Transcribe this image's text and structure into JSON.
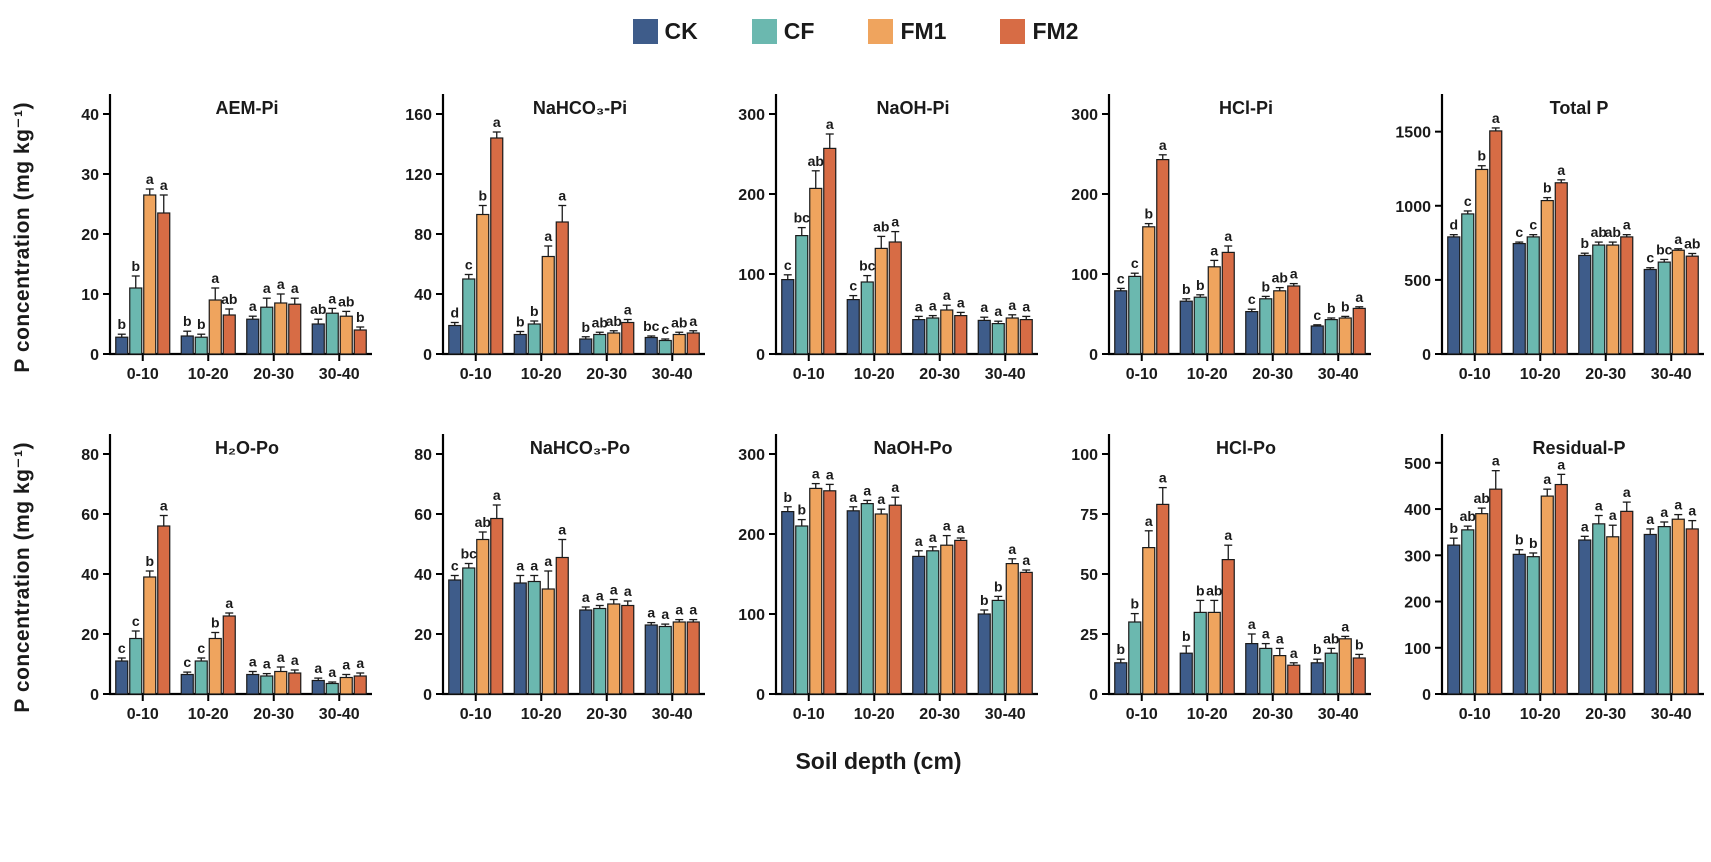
{
  "figure": {
    "y_axis_label": "P concentration (mg kg⁻¹)",
    "x_axis_label": "Soil depth (cm)",
    "categories": [
      "0-10",
      "10-20",
      "20-30",
      "30-40"
    ],
    "treatments": [
      "CK",
      "CF",
      "FM1",
      "FM2"
    ],
    "legend": [
      {
        "label": "CK",
        "color": "#3E5C8A"
      },
      {
        "label": "CF",
        "color": "#6BB8AF"
      },
      {
        "label": "FM1",
        "color": "#EFA45E"
      },
      {
        "label": "FM2",
        "color": "#D76C45"
      }
    ],
    "bar_outline_color": "#1a1a1a",
    "background_color": "#ffffff"
  },
  "chart_data": [
    {
      "type": "bar",
      "title": "AEM-Pi",
      "row": 1,
      "categories": [
        "0-10",
        "10-20",
        "20-30",
        "30-40"
      ],
      "ylim": [
        0,
        42
      ],
      "yticks": [
        0,
        10,
        20,
        30,
        40
      ],
      "series": [
        {
          "name": "CK",
          "values": [
            2.8,
            3.0,
            5.8,
            5.0
          ],
          "errors": [
            0.5,
            0.8,
            0.5,
            0.8
          ],
          "letters": [
            "b",
            "b",
            "a",
            "ab"
          ]
        },
        {
          "name": "CF",
          "values": [
            11.0,
            2.8,
            7.8,
            6.8
          ],
          "errors": [
            2.0,
            0.5,
            1.5,
            0.8
          ],
          "letters": [
            "b",
            "b",
            "a",
            "a"
          ]
        },
        {
          "name": "FM1",
          "values": [
            26.5,
            9.0,
            8.5,
            6.3
          ],
          "errors": [
            1.0,
            2.0,
            1.5,
            0.8
          ],
          "letters": [
            "a",
            "a",
            "a",
            "ab"
          ]
        },
        {
          "name": "FM2",
          "values": [
            23.5,
            6.5,
            8.3,
            4.0
          ],
          "errors": [
            3.0,
            1.0,
            1.0,
            0.5
          ],
          "letters": [
            "a",
            "ab",
            "a",
            "b"
          ]
        }
      ]
    },
    {
      "type": "bar",
      "title": "NaHCO₃-Pi",
      "row": 1,
      "categories": [
        "0-10",
        "10-20",
        "20-30",
        "30-40"
      ],
      "ylim": [
        0,
        168
      ],
      "yticks": [
        0,
        40,
        80,
        120,
        160
      ],
      "series": [
        {
          "name": "CK",
          "values": [
            19,
            13,
            10,
            11
          ],
          "errors": [
            2,
            2,
            1.5,
            1
          ],
          "letters": [
            "d",
            "b",
            "b",
            "bc"
          ]
        },
        {
          "name": "CF",
          "values": [
            50,
            20,
            13,
            9
          ],
          "errors": [
            3,
            2,
            1.5,
            1
          ],
          "letters": [
            "c",
            "b",
            "ab",
            "c"
          ]
        },
        {
          "name": "FM1",
          "values": [
            93,
            65,
            14,
            13
          ],
          "errors": [
            6,
            7,
            1.5,
            1.5
          ],
          "letters": [
            "b",
            "a",
            "ab",
            "ab"
          ]
        },
        {
          "name": "FM2",
          "values": [
            144,
            88,
            21,
            14
          ],
          "errors": [
            4,
            11,
            2,
            1.5
          ],
          "letters": [
            "a",
            "a",
            "a",
            "a"
          ]
        }
      ]
    },
    {
      "type": "bar",
      "title": "NaOH-Pi",
      "row": 1,
      "categories": [
        "0-10",
        "10-20",
        "20-30",
        "30-40"
      ],
      "ylim": [
        0,
        315
      ],
      "yticks": [
        0,
        100,
        200,
        300
      ],
      "series": [
        {
          "name": "CK",
          "values": [
            93,
            68,
            43,
            42
          ],
          "errors": [
            6,
            5,
            4,
            4
          ],
          "letters": [
            "c",
            "c",
            "a",
            "a"
          ]
        },
        {
          "name": "CF",
          "values": [
            148,
            90,
            45,
            38
          ],
          "errors": [
            10,
            8,
            3,
            3
          ],
          "letters": [
            "bc",
            "bc",
            "a",
            "a"
          ]
        },
        {
          "name": "FM1",
          "values": [
            207,
            132,
            55,
            45
          ],
          "errors": [
            22,
            15,
            6,
            4
          ],
          "letters": [
            "ab",
            "ab",
            "a",
            "a"
          ]
        },
        {
          "name": "FM2",
          "values": [
            257,
            140,
            48,
            43
          ],
          "errors": [
            18,
            13,
            4,
            4
          ],
          "letters": [
            "a",
            "a",
            "a",
            "a"
          ]
        }
      ]
    },
    {
      "type": "bar",
      "title": "HCl-Pi",
      "row": 1,
      "categories": [
        "0-10",
        "10-20",
        "20-30",
        "30-40"
      ],
      "ylim": [
        0,
        315
      ],
      "yticks": [
        0,
        100,
        200,
        300
      ],
      "series": [
        {
          "name": "CK",
          "values": [
            79,
            66,
            53,
            35
          ],
          "errors": [
            3,
            3,
            3,
            1.5
          ],
          "letters": [
            "c",
            "b",
            "c",
            "c"
          ]
        },
        {
          "name": "CF",
          "values": [
            97,
            71,
            69,
            43
          ],
          "errors": [
            4,
            3,
            3,
            2
          ],
          "letters": [
            "c",
            "b",
            "b",
            "b"
          ]
        },
        {
          "name": "FM1",
          "values": [
            159,
            109,
            79,
            45
          ],
          "errors": [
            4,
            8,
            4,
            2
          ],
          "letters": [
            "b",
            "a",
            "ab",
            "b"
          ]
        },
        {
          "name": "FM2",
          "values": [
            243,
            127,
            85,
            57
          ],
          "errors": [
            6,
            8,
            3,
            2
          ],
          "letters": [
            "a",
            "a",
            "a",
            "a"
          ]
        }
      ]
    },
    {
      "type": "bar",
      "title": "Total P",
      "row": 1,
      "categories": [
        "0-10",
        "10-20",
        "20-30",
        "30-40"
      ],
      "ylim": [
        0,
        1700
      ],
      "yticks": [
        0,
        500,
        1000,
        1500
      ],
      "series": [
        {
          "name": "CK",
          "values": [
            790,
            745,
            665,
            570
          ],
          "errors": [
            15,
            10,
            15,
            12
          ],
          "letters": [
            "d",
            "c",
            "b",
            "c"
          ]
        },
        {
          "name": "CF",
          "values": [
            945,
            790,
            735,
            620
          ],
          "errors": [
            20,
            15,
            20,
            18
          ],
          "letters": [
            "c",
            "c",
            "ab",
            "bc"
          ]
        },
        {
          "name": "FM1",
          "values": [
            1245,
            1035,
            735,
            700
          ],
          "errors": [
            25,
            20,
            20,
            10
          ],
          "letters": [
            "b",
            "b",
            "ab",
            "a"
          ]
        },
        {
          "name": "FM2",
          "values": [
            1505,
            1155,
            790,
            660
          ],
          "errors": [
            20,
            20,
            15,
            18
          ],
          "letters": [
            "a",
            "a",
            "a",
            "ab"
          ]
        }
      ]
    },
    {
      "type": "bar",
      "title": "H₂O-Po",
      "row": 2,
      "categories": [
        "0-10",
        "10-20",
        "20-30",
        "30-40"
      ],
      "ylim": [
        0,
        84
      ],
      "yticks": [
        0,
        20,
        40,
        60,
        80
      ],
      "series": [
        {
          "name": "CK",
          "values": [
            11,
            6.5,
            6.5,
            4.5
          ],
          "errors": [
            1,
            0.8,
            1,
            0.8
          ],
          "letters": [
            "c",
            "c",
            "a",
            "a"
          ]
        },
        {
          "name": "CF",
          "values": [
            18.5,
            11,
            6,
            3.5
          ],
          "errors": [
            2.5,
            1,
            0.8,
            0.5
          ],
          "letters": [
            "c",
            "c",
            "a",
            "a"
          ]
        },
        {
          "name": "FM1",
          "values": [
            39,
            18.5,
            7.5,
            5.5
          ],
          "errors": [
            2,
            2,
            1.5,
            1
          ],
          "letters": [
            "b",
            "b",
            "a",
            "a"
          ]
        },
        {
          "name": "FM2",
          "values": [
            56,
            26,
            7,
            6
          ],
          "errors": [
            3.5,
            1,
            1,
            1
          ],
          "letters": [
            "a",
            "a",
            "a",
            "a"
          ]
        }
      ]
    },
    {
      "type": "bar",
      "title": "NaHCO₃-Po",
      "row": 2,
      "categories": [
        "0-10",
        "10-20",
        "20-30",
        "30-40"
      ],
      "ylim": [
        0,
        84
      ],
      "yticks": [
        0,
        20,
        40,
        60,
        80
      ],
      "series": [
        {
          "name": "CK",
          "values": [
            38,
            37,
            28,
            23
          ],
          "errors": [
            1.5,
            2.5,
            1,
            0.8
          ],
          "letters": [
            "c",
            "a",
            "a",
            "a"
          ]
        },
        {
          "name": "CF",
          "values": [
            42,
            37.5,
            28.5,
            22.5
          ],
          "errors": [
            1.5,
            2,
            1,
            0.8
          ],
          "letters": [
            "bc",
            "a",
            "a",
            "a"
          ]
        },
        {
          "name": "FM1",
          "values": [
            51.5,
            35,
            30,
            24
          ],
          "errors": [
            2.5,
            6,
            1.5,
            0.8
          ],
          "letters": [
            "ab",
            "a",
            "a",
            "a"
          ]
        },
        {
          "name": "FM2",
          "values": [
            58.5,
            45.5,
            29.5,
            24
          ],
          "errors": [
            4.5,
            6,
            1.5,
            0.8
          ],
          "letters": [
            "a",
            "a",
            "a",
            "a"
          ]
        }
      ]
    },
    {
      "type": "bar",
      "title": "NaOH-Po",
      "row": 2,
      "categories": [
        "0-10",
        "10-20",
        "20-30",
        "30-40"
      ],
      "ylim": [
        0,
        315
      ],
      "yticks": [
        0,
        100,
        200,
        300
      ],
      "series": [
        {
          "name": "CK",
          "values": [
            228,
            229,
            172,
            100
          ],
          "errors": [
            6,
            5,
            7,
            5
          ],
          "letters": [
            "b",
            "a",
            "a",
            "b"
          ]
        },
        {
          "name": "CF",
          "values": [
            210,
            238,
            179,
            117
          ],
          "errors": [
            8,
            4,
            5,
            5
          ],
          "letters": [
            "b",
            "a",
            "a",
            "b"
          ]
        },
        {
          "name": "FM1",
          "values": [
            257,
            225,
            186,
            163
          ],
          "errors": [
            6,
            6,
            12,
            6
          ],
          "letters": [
            "a",
            "a",
            "a",
            "a"
          ]
        },
        {
          "name": "FM2",
          "values": [
            254,
            236,
            192,
            152
          ],
          "errors": [
            8,
            10,
            3,
            3
          ],
          "letters": [
            "a",
            "a",
            "a",
            "a"
          ]
        }
      ]
    },
    {
      "type": "bar",
      "title": "HCl-Po",
      "row": 2,
      "categories": [
        "0-10",
        "10-20",
        "20-30",
        "30-40"
      ],
      "ylim": [
        0,
        105
      ],
      "yticks": [
        0,
        25,
        50,
        75,
        100
      ],
      "series": [
        {
          "name": "CK",
          "values": [
            13,
            17,
            21,
            13
          ],
          "errors": [
            1.5,
            3,
            4,
            1.5
          ],
          "letters": [
            "b",
            "b",
            "a",
            "b"
          ]
        },
        {
          "name": "CF",
          "values": [
            30,
            34,
            19,
            17
          ],
          "errors": [
            3.5,
            5,
            2,
            2
          ],
          "letters": [
            "b",
            "b",
            "a",
            "ab"
          ]
        },
        {
          "name": "FM1",
          "values": [
            61,
            34,
            16,
            23
          ],
          "errors": [
            7,
            5,
            3,
            1
          ],
          "letters": [
            "a",
            "ab",
            "a",
            "a"
          ]
        },
        {
          "name": "FM2",
          "values": [
            79,
            56,
            12,
            15
          ],
          "errors": [
            7,
            6,
            1,
            1.5
          ],
          "letters": [
            "a",
            "a",
            "a",
            "b"
          ]
        }
      ]
    },
    {
      "type": "bar",
      "title": "Residual-P",
      "row": 2,
      "categories": [
        "0-10",
        "10-20",
        "20-30",
        "30-40"
      ],
      "ylim": [
        0,
        545
      ],
      "yticks": [
        0,
        100,
        200,
        300,
        400,
        500
      ],
      "series": [
        {
          "name": "CK",
          "values": [
            322,
            302,
            333,
            345
          ],
          "errors": [
            15,
            10,
            8,
            12
          ],
          "letters": [
            "b",
            "b",
            "a",
            "a"
          ]
        },
        {
          "name": "CF",
          "values": [
            355,
            297,
            368,
            362
          ],
          "errors": [
            8,
            8,
            18,
            10
          ],
          "letters": [
            "ab",
            "b",
            "a",
            "a"
          ]
        },
        {
          "name": "FM1",
          "values": [
            390,
            428,
            340,
            378
          ],
          "errors": [
            12,
            15,
            25,
            10
          ],
          "letters": [
            "ab",
            "a",
            "a",
            "a"
          ]
        },
        {
          "name": "FM2",
          "values": [
            443,
            453,
            395,
            357
          ],
          "errors": [
            40,
            22,
            20,
            18
          ],
          "letters": [
            "a",
            "a",
            "a",
            "a"
          ]
        }
      ]
    }
  ]
}
